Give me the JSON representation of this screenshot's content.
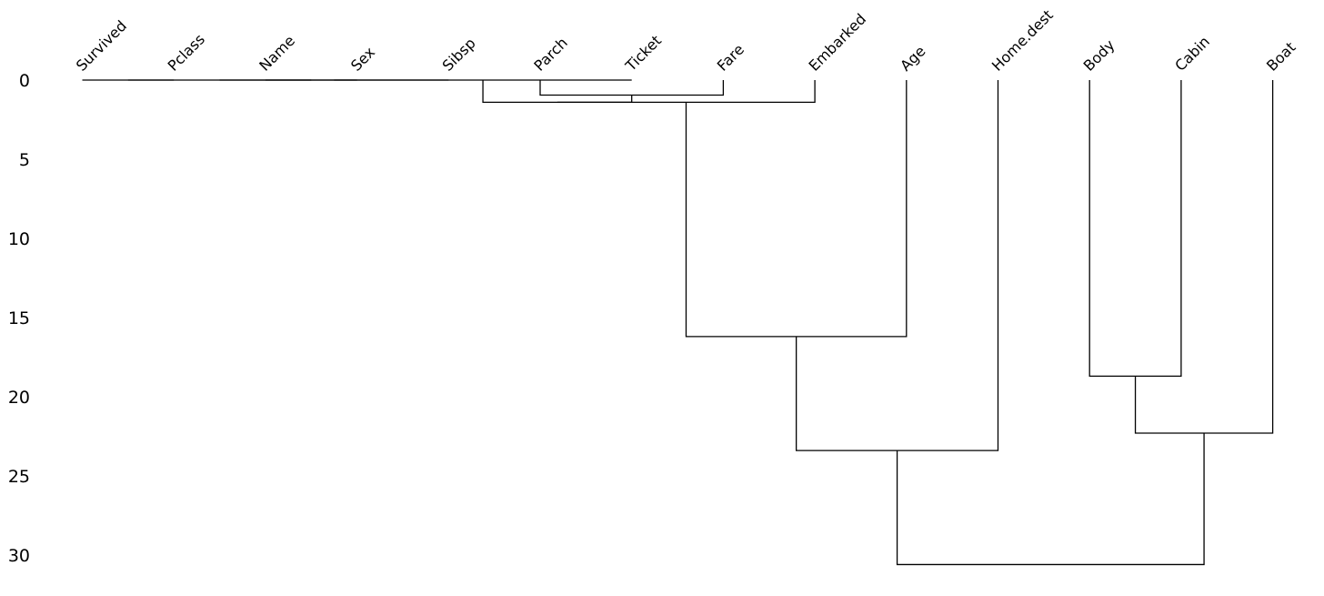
{
  "chart_data": {
    "type": "dendrogram",
    "leaves": [
      "Survived",
      "Pclass",
      "Name",
      "Sex",
      "Sibsp",
      "Parch",
      "Ticket",
      "Fare",
      "Embarked",
      "Age",
      "Home.dest",
      "Body",
      "Cabin",
      "Boat"
    ],
    "y_axis": {
      "ticks": [
        0,
        5,
        10,
        15,
        20,
        25,
        30
      ],
      "range": [
        0,
        31.5
      ],
      "inverted": true,
      "grid": false
    },
    "merges": [
      {
        "left": "Survived",
        "right": "Pclass",
        "height": 0
      },
      {
        "left": "Name",
        "right": "Sex",
        "height": 0
      },
      {
        "left": "Survived+Pclass",
        "right": "Name+Sex",
        "height": 0
      },
      {
        "left": "Survived..Sex",
        "right": "Sibsp",
        "height": 0
      },
      {
        "left": "Parch",
        "right": "Fare",
        "height": 0.95
      },
      {
        "left": "Survived..Sibsp",
        "right": "Ticket",
        "height": 0
      },
      {
        "left": "Parch+Fare",
        "right": "Survived..Ticket",
        "height": 1.4
      },
      {
        "left": "Parch..Ticket",
        "right": "Embarked",
        "height": 1.4
      },
      {
        "left": "Parch..Embarked",
        "right": "Age",
        "height": 16.2
      },
      {
        "left": "Parch..Age",
        "right": "Home.dest",
        "height": 23.4
      },
      {
        "left": "Body",
        "right": "Cabin",
        "height": 18.7
      },
      {
        "left": "Body+Cabin",
        "right": "Boat",
        "height": 22.3
      },
      {
        "left": "Parch..Home.dest",
        "right": "Body..Boat",
        "height": 30.6
      }
    ]
  }
}
